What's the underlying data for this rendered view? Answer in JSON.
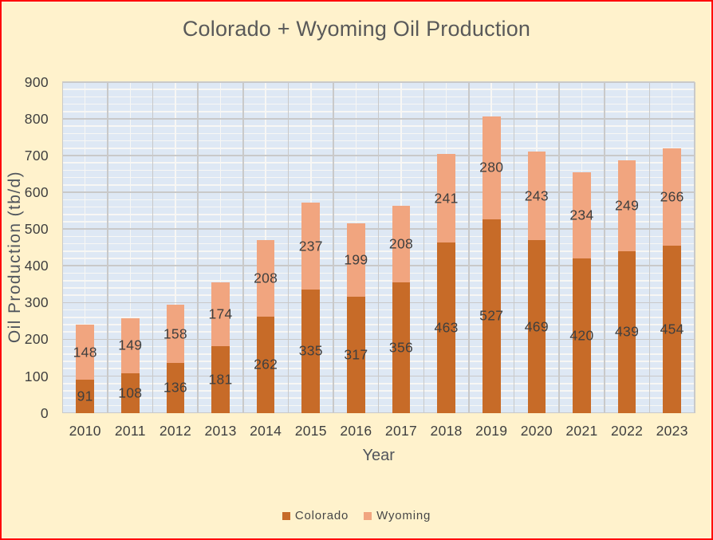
{
  "window": {
    "background": "#FFF2CC",
    "border_color": "#FF0000",
    "inner_edge_color": "#FFFAE3"
  },
  "chart_data": {
    "type": "bar",
    "stacked": true,
    "title": "Colorado + Wyoming Oil Production",
    "xlabel": "Year",
    "ylabel": "Oil Production (tb/d)",
    "categories": [
      "2010",
      "2011",
      "2012",
      "2013",
      "2014",
      "2015",
      "2016",
      "2017",
      "2018",
      "2019",
      "2020",
      "2021",
      "2022",
      "2023"
    ],
    "series": [
      {
        "name": "Colorado",
        "color": "#C76B28",
        "values": [
          91,
          108,
          136,
          181,
          262,
          335,
          317,
          356,
          463,
          527,
          469,
          420,
          439,
          454
        ]
      },
      {
        "name": "Wyoming",
        "color": "#F1A57F",
        "values": [
          148,
          149,
          158,
          174,
          208,
          237,
          199,
          208,
          241,
          280,
          243,
          234,
          249,
          266
        ]
      }
    ],
    "ylim": [
      0,
      900
    ],
    "yticks": [
      0,
      100,
      200,
      300,
      400,
      500,
      600,
      700,
      800,
      900
    ],
    "ytick_step": 100,
    "yminor_step": 20,
    "grid": true,
    "data_labels": true,
    "legend_position": "bottom",
    "colors": {
      "plot_background": "#DEE8F4",
      "major_gridline": "#C9C9C9",
      "minor_gridline": "#F8F7F4",
      "title_text": "#595959",
      "axis_title_text": "#50555C",
      "tick_label_text": "#3F3F3F",
      "data_label_text": "#3F3F3F",
      "legend_text": "#474747"
    }
  }
}
